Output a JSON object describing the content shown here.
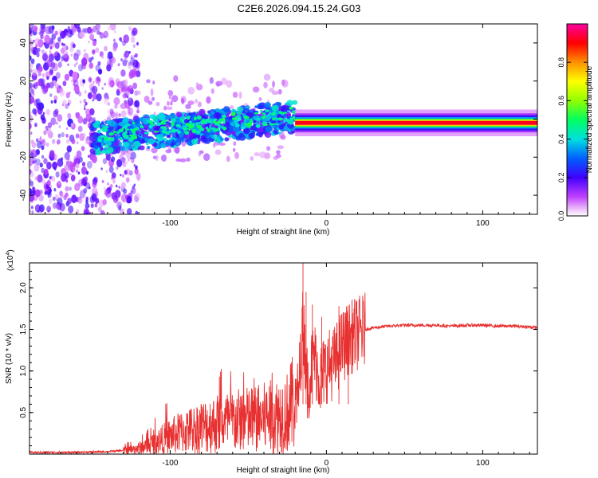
{
  "title": "C2E6.2026.094.15.24.G03",
  "chart_data": [
    {
      "type": "heatmap",
      "name": "spectrogram",
      "xlabel": "Height of straight line (km)",
      "ylabel": "Frequency (Hz)",
      "xlim": [
        -190,
        135
      ],
      "ylim": [
        -50,
        50
      ],
      "xticks": [
        -100,
        0,
        100
      ],
      "yticks": [
        -40,
        -20,
        0,
        20,
        40
      ],
      "xticklabels": [
        "-100",
        "0",
        "100"
      ],
      "yticklabels": [
        "-40",
        "-20",
        "0",
        "20",
        "40"
      ],
      "colorbar": {
        "label": "Normalized spectral amplitude",
        "range": [
          0,
          1
        ],
        "ticks": [
          0.0,
          0.2,
          0.4,
          0.6,
          0.8
        ],
        "ticklabels": [
          "0.0",
          "0.2",
          "0.4",
          "0.6",
          "0.8"
        ],
        "colors": [
          "#ffffff",
          "#e080f0",
          "#8000ff",
          "#0000ff",
          "#00c0ff",
          "#00ff80",
          "#a0ff00",
          "#ffff00",
          "#ff8000",
          "#ff0000",
          "#ff00a0"
        ]
      },
      "carrier": {
        "x_start": -20,
        "x_end": 135,
        "freq_hz": -2
      },
      "regions": [
        {
          "x_from": -190,
          "x_to": -125,
          "freq_from": -50,
          "freq_to": 50,
          "level": 0.15,
          "desc": "scattered noise"
        },
        {
          "x_from": -150,
          "x_to": -20,
          "freq_from": -15,
          "freq_to": 10,
          "level": 0.35,
          "desc": "broadened signal"
        },
        {
          "x_from": -20,
          "x_to": 135,
          "freq_from": -4,
          "freq_to": 0,
          "level": 1.0,
          "desc": "narrow carrier"
        }
      ]
    },
    {
      "type": "line",
      "name": "snr",
      "xlabel": "Height of straight line (km)",
      "ylabel": "SNR (10 * v/v)",
      "yscale_label": "(x10",
      "yscale_exp": "4",
      "yscale_close": ")",
      "xlim": [
        -190,
        135
      ],
      "ylim": [
        0,
        2.3
      ],
      "xticks": [
        -100,
        0,
        100
      ],
      "yticks": [
        0.5,
        1.0,
        1.5,
        2.0
      ],
      "xticklabels": [
        "-100",
        "0",
        "100"
      ],
      "yticklabels": [
        "0.5",
        "1.0",
        "1.5",
        "2.0"
      ],
      "color": "#e83030",
      "series": [
        {
          "name": "SNR",
          "x": [
            -190,
            -160,
            -140,
            -125,
            -115,
            -105,
            -95,
            -85,
            -75,
            -65,
            -55,
            -45,
            -35,
            -25,
            -18,
            -15,
            -12,
            -8,
            -4,
            0,
            5,
            10,
            15,
            20,
            25,
            30,
            40,
            50,
            60,
            70,
            80,
            90,
            100,
            110,
            120,
            130,
            135
          ],
          "y": [
            0.02,
            0.02,
            0.03,
            0.05,
            0.1,
            0.18,
            0.25,
            0.3,
            0.35,
            0.38,
            0.4,
            0.42,
            0.45,
            0.5,
            0.7,
            1.6,
            0.8,
            1.2,
            0.9,
            1.05,
            1.1,
            1.3,
            1.4,
            1.45,
            1.5,
            1.52,
            1.54,
            1.55,
            1.55,
            1.55,
            1.54,
            1.55,
            1.55,
            1.54,
            1.54,
            1.53,
            1.52
          ]
        }
      ]
    }
  ]
}
